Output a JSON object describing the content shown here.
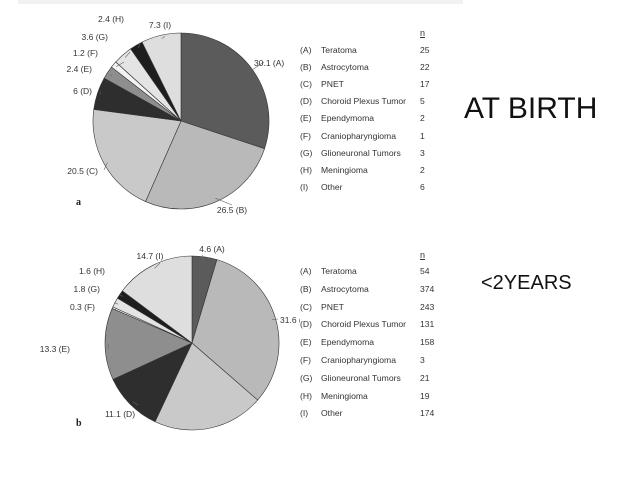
{
  "chart_data": [
    {
      "type": "pie",
      "panel_label": "a",
      "caption": "AT BIRTH",
      "n_header": "n",
      "slices": [
        {
          "code": "(A)",
          "name": "Teratoma",
          "value": 30.1,
          "n": "25",
          "label": "30.1 (A)",
          "color": "#5b5b5b"
        },
        {
          "code": "(B)",
          "name": "Astrocytoma",
          "value": 26.5,
          "n": "22",
          "label": "26.5 (B)",
          "color": "#b9b9b9"
        },
        {
          "code": "(C)",
          "name": "PNET",
          "value": 20.5,
          "n": "17",
          "label": "20.5 (C)",
          "color": "#c9c9c9"
        },
        {
          "code": "(D)",
          "name": "Choroid Plexus Tumor",
          "value": 6,
          "n": "5",
          "label": "6 (D)",
          "color": "#2e2e2e"
        },
        {
          "code": "(E)",
          "name": "Ependymoma",
          "value": 2.4,
          "n": "2",
          "label": "2.4 (E)",
          "color": "#8e8e8e"
        },
        {
          "code": "(F)",
          "name": "Craniopharyngioma",
          "value": 1.2,
          "n": "1",
          "label": "1.2 (F)",
          "color": "#f2f2f2"
        },
        {
          "code": "(G)",
          "name": "Glioneuronal Tumors",
          "value": 3.6,
          "n": "3",
          "label": "3.6 (G)",
          "color": "#e4e4e4"
        },
        {
          "code": "(H)",
          "name": "Meningioma",
          "value": 2.4,
          "n": "2",
          "label": "2.4 (H)",
          "color": "#1e1e1e"
        },
        {
          "code": "(I)",
          "name": "Other",
          "value": 7.3,
          "n": "6",
          "label": "7.3 (I)",
          "color": "#dedede"
        }
      ]
    },
    {
      "type": "pie",
      "panel_label": "b",
      "caption": "<2YEARS",
      "n_header": "n",
      "slices": [
        {
          "code": "(A)",
          "name": "Teratoma",
          "value": 4.6,
          "n": "54",
          "label": "4.6 (A)",
          "color": "#5b5b5b"
        },
        {
          "code": "(B)",
          "name": "Astrocytoma",
          "value": 31.6,
          "n": "374",
          "label": "31.6 (B)",
          "color": "#b9b9b9"
        },
        {
          "code": "(C)",
          "name": "PNET",
          "value": 20.5,
          "n": "243",
          "label": "",
          "color": "#c9c9c9"
        },
        {
          "code": "(D)",
          "name": "Choroid Plexus Tumor",
          "value": 11.1,
          "n": "131",
          "label": "11.1 (D)",
          "color": "#2e2e2e"
        },
        {
          "code": "(E)",
          "name": "Ependymoma",
          "value": 13.3,
          "n": "158",
          "label": "13.3 (E)",
          "color": "#8e8e8e"
        },
        {
          "code": "(F)",
          "name": "Craniopharyngioma",
          "value": 0.3,
          "n": "3",
          "label": "0.3 (F)",
          "color": "#f2f2f2"
        },
        {
          "code": "(G)",
          "name": "Glioneuronal Tumors",
          "value": 1.8,
          "n": "21",
          "label": "1.8 (G)",
          "color": "#e4e4e4"
        },
        {
          "code": "(H)",
          "name": "Meningioma",
          "value": 1.6,
          "n": "19",
          "label": "1.6 (H)",
          "color": "#1e1e1e"
        },
        {
          "code": "(I)",
          "name": "Other",
          "value": 14.7,
          "n": "174",
          "label": "14.7 (I)",
          "color": "#dedede"
        }
      ]
    }
  ]
}
